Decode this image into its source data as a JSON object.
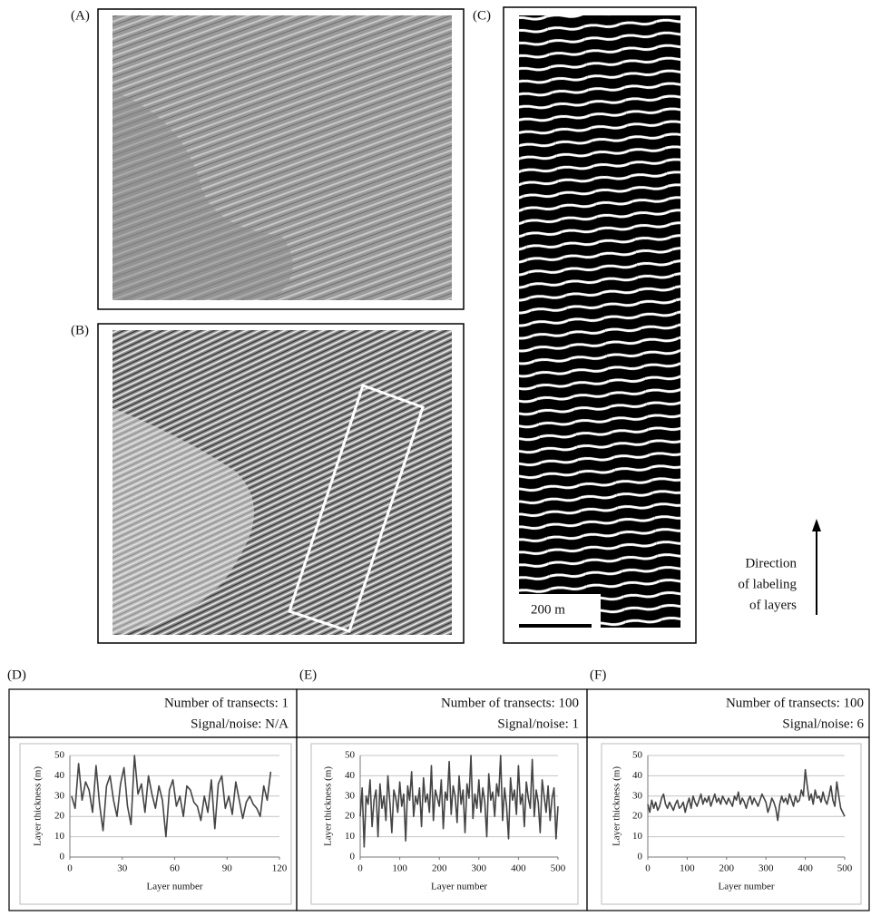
{
  "figure": {
    "panel_labels": [
      "(A)",
      "(B)",
      "(C)"
    ],
    "scale_bar": "200 m",
    "direction_note": [
      "Direction",
      "of labeling",
      "of layers"
    ]
  },
  "chart_data": [
    {
      "type": "line",
      "panel_label": "(D)",
      "header": [
        "Number of transects: 1",
        "Signal/noise: N/A"
      ],
      "xlabel": "Layer number",
      "ylabel": "Layer thickness (m)",
      "color": "#444444",
      "grid": true,
      "x": [
        1,
        3,
        5,
        7,
        9,
        11,
        13,
        15,
        17,
        19,
        21,
        23,
        25,
        27,
        29,
        31,
        33,
        35,
        37,
        39,
        41,
        43,
        45,
        47,
        49,
        51,
        53,
        55,
        57,
        59,
        61,
        63,
        65,
        67,
        69,
        71,
        73,
        75,
        77,
        79,
        81,
        83,
        85,
        87,
        89,
        91,
        93,
        95,
        97,
        99,
        101,
        103,
        105,
        107,
        109,
        111,
        113,
        115
      ],
      "values": [
        30,
        24,
        46,
        28,
        37,
        33,
        22,
        45,
        26,
        13,
        35,
        40,
        28,
        20,
        36,
        44,
        25,
        16,
        50,
        31,
        36,
        22,
        40,
        31,
        24,
        35,
        28,
        10,
        33,
        38,
        25,
        30,
        20,
        35,
        33,
        27,
        25,
        18,
        30,
        22,
        38,
        14,
        36,
        40,
        24,
        30,
        21,
        37,
        28,
        19,
        27,
        30,
        26,
        24,
        20,
        35,
        28,
        42
      ],
      "xlim": [
        0,
        120
      ],
      "xticks": [
        0,
        30,
        60,
        90,
        120
      ],
      "ylim": [
        0,
        50
      ],
      "yticks": [
        0,
        10,
        20,
        30,
        40,
        50
      ]
    },
    {
      "type": "line",
      "panel_label": "(E)",
      "header": [
        "Number of transects: 100",
        "Signal/noise: 1"
      ],
      "xlabel": "Layer number",
      "ylabel": "Layer thickness (m)",
      "color": "#444444",
      "grid": true,
      "x": [
        0,
        5,
        10,
        15,
        20,
        25,
        30,
        35,
        40,
        45,
        50,
        55,
        60,
        65,
        70,
        75,
        80,
        85,
        90,
        95,
        100,
        105,
        110,
        115,
        120,
        125,
        130,
        135,
        140,
        145,
        150,
        155,
        160,
        165,
        170,
        175,
        180,
        185,
        190,
        195,
        200,
        205,
        210,
        215,
        220,
        225,
        230,
        235,
        240,
        245,
        250,
        255,
        260,
        265,
        270,
        275,
        280,
        285,
        290,
        295,
        300,
        305,
        310,
        315,
        320,
        325,
        330,
        335,
        340,
        345,
        350,
        355,
        360,
        365,
        370,
        375,
        380,
        385,
        390,
        395,
        400,
        405,
        410,
        415,
        420,
        425,
        430,
        435,
        440,
        445,
        450,
        455,
        460,
        465,
        470,
        475,
        480,
        485,
        490,
        495,
        500
      ],
      "values": [
        20,
        34,
        5,
        30,
        26,
        38,
        15,
        28,
        33,
        10,
        36,
        24,
        30,
        18,
        40,
        27,
        12,
        33,
        29,
        22,
        37,
        25,
        31,
        8,
        35,
        28,
        42,
        20,
        30,
        26,
        34,
        15,
        39,
        27,
        31,
        22,
        45,
        18,
        33,
        29,
        25,
        38,
        14,
        32,
        28,
        47,
        21,
        35,
        30,
        17,
        40,
        26,
        33,
        12,
        36,
        29,
        50,
        19,
        31,
        24,
        38,
        22,
        34,
        27,
        10,
        41,
        28,
        32,
        20,
        36,
        30,
        50,
        18,
        34,
        25,
        9,
        39,
        28,
        33,
        21,
        45,
        26,
        31,
        15,
        37,
        29,
        24,
        48,
        20,
        33,
        27,
        12,
        38,
        30,
        22,
        35,
        18,
        29,
        34,
        9,
        25
      ],
      "xlim": [
        0,
        500
      ],
      "xticks": [
        0,
        100,
        200,
        300,
        400,
        500
      ],
      "ylim": [
        0,
        50
      ],
      "yticks": [
        0,
        10,
        20,
        30,
        40,
        50
      ]
    },
    {
      "type": "line",
      "panel_label": "(F)",
      "header": [
        "Number of transects: 100",
        "Signal/noise: 6"
      ],
      "xlabel": "Layer number",
      "ylabel": "Layer thickness (m)",
      "color": "#444444",
      "grid": true,
      "x": [
        0,
        5,
        10,
        15,
        20,
        25,
        30,
        35,
        40,
        45,
        50,
        55,
        60,
        65,
        70,
        75,
        80,
        85,
        90,
        95,
        100,
        105,
        110,
        115,
        120,
        125,
        130,
        135,
        140,
        145,
        150,
        155,
        160,
        165,
        170,
        175,
        180,
        185,
        190,
        195,
        200,
        205,
        210,
        215,
        220,
        225,
        230,
        235,
        240,
        245,
        250,
        255,
        260,
        265,
        270,
        275,
        280,
        285,
        290,
        295,
        300,
        305,
        310,
        315,
        320,
        325,
        330,
        335,
        340,
        345,
        350,
        355,
        360,
        365,
        370,
        375,
        380,
        385,
        390,
        395,
        400,
        405,
        410,
        415,
        420,
        425,
        430,
        435,
        440,
        445,
        450,
        455,
        460,
        465,
        470,
        475,
        480,
        485,
        490,
        495,
        500
      ],
      "values": [
        26,
        22,
        28,
        24,
        27,
        23,
        25,
        29,
        31,
        26,
        24,
        27,
        25,
        23,
        26,
        28,
        24,
        25,
        27,
        22,
        26,
        29,
        24,
        30,
        27,
        25,
        28,
        31,
        26,
        29,
        27,
        30,
        25,
        28,
        31,
        27,
        29,
        26,
        30,
        28,
        26,
        29,
        27,
        25,
        30,
        28,
        32,
        26,
        29,
        27,
        24,
        28,
        30,
        26,
        29,
        27,
        25,
        28,
        31,
        29,
        27,
        22,
        25,
        29,
        27,
        24,
        18,
        26,
        30,
        27,
        29,
        26,
        31,
        28,
        25,
        30,
        27,
        28,
        33,
        30,
        43,
        35,
        28,
        31,
        26,
        33,
        29,
        30,
        27,
        32,
        28,
        26,
        30,
        35,
        28,
        25,
        37,
        30,
        24,
        22,
        20
      ],
      "xlim": [
        0,
        500
      ],
      "xticks": [
        0,
        100,
        200,
        300,
        400,
        500
      ],
      "ylim": [
        0,
        50
      ],
      "yticks": [
        0,
        10,
        20,
        30,
        40,
        50
      ]
    }
  ]
}
